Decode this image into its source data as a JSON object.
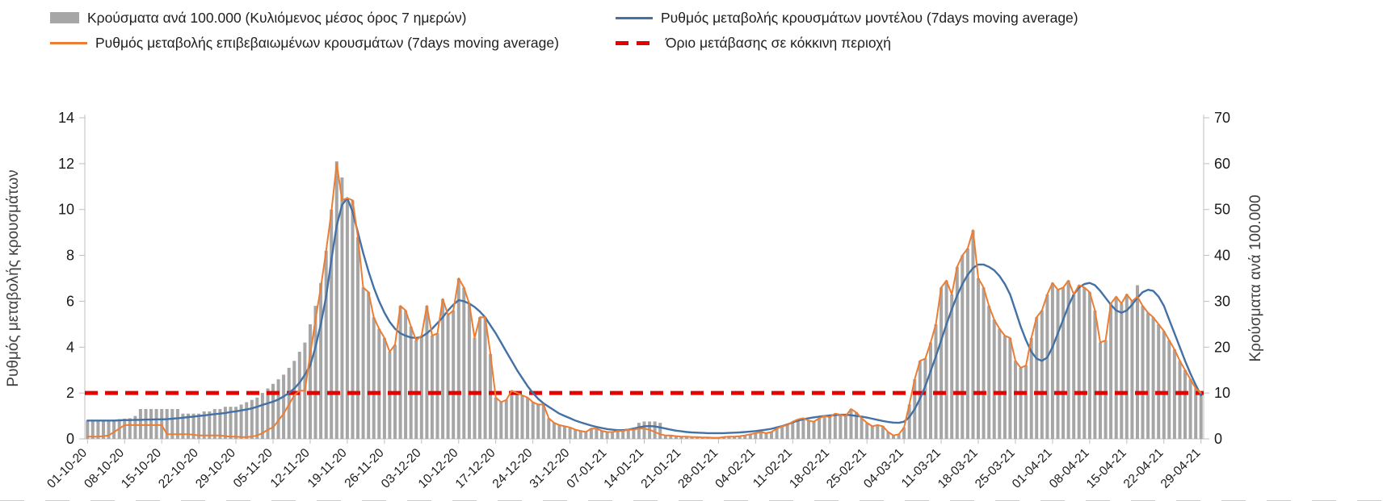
{
  "chart_data": {
    "type": "bar+line combo, dual y-axis",
    "grid": false,
    "legend_position": "top",
    "left_axis": {
      "label": "Ρυθμός μεταβολής κρουσμάτων",
      "min": 0,
      "max": 14,
      "ticks": [
        0,
        2,
        4,
        6,
        8,
        10,
        12,
        14
      ]
    },
    "right_axis": {
      "label": "Κρούσματα ανά 100.000",
      "min": 0,
      "max": 70,
      "ticks": [
        0,
        10,
        20,
        30,
        40,
        50,
        60,
        70
      ]
    },
    "x_tick_interval_days": 7,
    "series_length": 211,
    "x_tick_labels": [
      "01-10-20",
      "08-10-20",
      "15-10-20",
      "22-10-20",
      "29-10-20",
      "05-11-20",
      "12-11-20",
      "19-11-20",
      "26-11-20",
      "03-12-20",
      "10-12-20",
      "17-12-20",
      "24-12-20",
      "31-12-20",
      "07-01-21",
      "14-01-21",
      "21-01-21",
      "28-01-21",
      "04-02-21",
      "11-02-21",
      "18-02-21",
      "25-02-21",
      "04-03-21",
      "11-03-21",
      "18-03-21",
      "25-03-21",
      "01-04-21",
      "08-04-21",
      "15-04-21",
      "22-04-21",
      "29-04-21"
    ],
    "threshold": {
      "name": "Όριο μετάβασης σε κόκκινη περιοχή",
      "axis": "left",
      "value": 2,
      "color": "#e60000"
    },
    "series": [
      {
        "key": "cases-per-100k-bars",
        "name": "Κρούσματα ανά 100.000 (Κυλιόμενος μέσος όρος 7 ημερών)",
        "type": "bar",
        "axis": "right",
        "color": "#a6a6a6",
        "values": [
          4,
          4,
          4,
          4,
          4,
          4.2,
          4.3,
          4.4,
          4.5,
          5,
          6.5,
          6.5,
          6.5,
          6.5,
          6.5,
          6.5,
          6.5,
          6.5,
          5.5,
          5.5,
          5.5,
          5.5,
          6,
          6,
          6.5,
          6.5,
          7,
          7,
          7,
          7.5,
          8,
          8.5,
          9,
          10,
          11,
          12,
          13,
          14,
          15.5,
          17,
          19,
          21,
          25,
          29,
          34,
          41,
          50,
          60.5,
          57,
          52.5,
          52,
          44,
          33,
          32,
          26.5,
          24,
          22,
          19,
          20.5,
          29,
          28,
          24.5,
          21.5,
          22.5,
          29,
          22.5,
          23,
          30.5,
          27,
          28,
          35,
          33,
          29.5,
          22,
          26.5,
          26.5,
          18.5,
          9,
          8,
          8.5,
          10.5,
          10,
          9.5,
          9,
          8,
          7.5,
          7.5,
          4.5,
          3.5,
          3,
          2.8,
          2.5,
          2,
          1.8,
          1.5,
          2.3,
          2.3,
          1.8,
          1.5,
          1.5,
          1.8,
          1.8,
          2,
          2,
          3.5,
          3.8,
          3.8,
          3.8,
          3.5,
          0.8,
          0.8,
          0.6,
          0.5,
          0.5,
          0.4,
          0.4,
          0.3,
          0.3,
          0.3,
          0.3,
          0.4,
          0.5,
          0.5,
          0.6,
          0.8,
          1,
          1.3,
          1.5,
          1.3,
          1.5,
          2.3,
          2.8,
          3,
          3.8,
          4.3,
          4.5,
          4,
          3.8,
          4.5,
          5,
          4.8,
          5.5,
          5.3,
          5,
          6.5,
          5.8,
          4.5,
          3.5,
          2.8,
          3,
          2.8,
          1.5,
          0.8,
          1,
          2.5,
          7.5,
          13,
          17,
          17.5,
          21,
          25,
          33,
          34.5,
          31.5,
          37.5,
          40,
          41.5,
          45.5,
          35,
          33,
          29,
          26,
          24,
          22.5,
          22,
          17,
          15.5,
          16,
          22,
          26.5,
          28,
          31.5,
          34,
          32.5,
          33,
          34.5,
          31.5,
          33.5,
          33,
          32,
          28,
          21,
          21.5,
          29.5,
          31,
          29.5,
          31.5,
          30,
          33.5,
          29,
          27.5,
          26.5,
          25,
          23.5,
          21.5,
          19.5,
          17,
          15,
          13,
          11,
          10
        ]
      },
      {
        "key": "model-rate-line",
        "name": "Ρυθμός μεταβολής κρουσμάτων μοντέλου (7days moving average)",
        "type": "line",
        "axis": "left",
        "color": "#4371a5",
        "values": [
          0.8,
          0.8,
          0.8,
          0.8,
          0.8,
          0.8,
          0.81,
          0.82,
          0.82,
          0.83,
          0.83,
          0.84,
          0.84,
          0.85,
          0.85,
          0.86,
          0.88,
          0.9,
          0.92,
          0.95,
          0.97,
          1,
          1.02,
          1.05,
          1.08,
          1.1,
          1.13,
          1.17,
          1.2,
          1.24,
          1.28,
          1.33,
          1.4,
          1.48,
          1.55,
          1.62,
          1.72,
          1.85,
          2,
          2.2,
          2.45,
          2.8,
          3.2,
          4,
          5,
          6.2,
          7.8,
          9.3,
          10.2,
          10.5,
          9.9,
          9,
          8.1,
          7.3,
          6.6,
          6,
          5.5,
          5.1,
          4.8,
          4.6,
          4.5,
          4.42,
          4.4,
          4.45,
          4.6,
          4.8,
          5.05,
          5.3,
          5.6,
          5.85,
          6.05,
          6,
          5.9,
          5.75,
          5.55,
          5.3,
          4.95,
          4.6,
          4.2,
          3.8,
          3.4,
          3,
          2.65,
          2.3,
          2,
          1.75,
          1.55,
          1.4,
          1.25,
          1.1,
          1,
          0.9,
          0.8,
          0.72,
          0.65,
          0.58,
          0.52,
          0.47,
          0.43,
          0.4,
          0.38,
          0.38,
          0.4,
          0.45,
          0.5,
          0.55,
          0.56,
          0.54,
          0.5,
          0.45,
          0.4,
          0.36,
          0.33,
          0.3,
          0.28,
          0.27,
          0.26,
          0.25,
          0.25,
          0.25,
          0.25,
          0.26,
          0.27,
          0.28,
          0.3,
          0.32,
          0.34,
          0.37,
          0.4,
          0.44,
          0.5,
          0.56,
          0.63,
          0.72,
          0.8,
          0.86,
          0.9,
          0.94,
          0.97,
          1,
          1.02,
          1.04,
          1.05,
          1.05,
          1.03,
          1,
          0.97,
          0.93,
          0.88,
          0.83,
          0.78,
          0.74,
          0.71,
          0.7,
          0.75,
          0.95,
          1.3,
          1.75,
          2.3,
          2.95,
          3.6,
          4.3,
          5,
          5.65,
          6.25,
          6.75,
          7.15,
          7.45,
          7.6,
          7.6,
          7.5,
          7.35,
          7.1,
          6.75,
          6.3,
          5.6,
          4.9,
          4.3,
          3.8,
          3.5,
          3.4,
          3.55,
          4,
          4.6,
          5.2,
          5.8,
          6.3,
          6.6,
          6.75,
          6.8,
          6.7,
          6.45,
          6.15,
          5.85,
          5.6,
          5.5,
          5.6,
          5.85,
          6.15,
          6.4,
          6.5,
          6.45,
          6.2,
          5.8,
          5.2,
          4.6,
          4,
          3.4,
          2.85,
          2.35,
          1.9
        ]
      },
      {
        "key": "confirmed-rate-line",
        "name": "Ρυθμός μεταβολής επιβεβαιωμένων κρουσμάτων (7days moving average)",
        "type": "line",
        "axis": "left",
        "color": "#ec7d32",
        "values": [
          0.1,
          0.1,
          0.1,
          0.12,
          0.15,
          0.3,
          0.45,
          0.6,
          0.6,
          0.6,
          0.6,
          0.6,
          0.6,
          0.6,
          0.6,
          0.2,
          0.2,
          0.2,
          0.2,
          0.2,
          0.18,
          0.15,
          0.15,
          0.15,
          0.15,
          0.15,
          0.12,
          0.1,
          0.1,
          0.08,
          0.08,
          0.1,
          0.15,
          0.25,
          0.4,
          0.5,
          0.8,
          1.1,
          1.5,
          1.9,
          2.1,
          2.1,
          3.7,
          5.2,
          6.6,
          8.2,
          9.9,
          12,
          10.4,
          10.5,
          10.4,
          8.8,
          6.6,
          6.4,
          5.3,
          4.8,
          4.4,
          3.8,
          4.1,
          5.8,
          5.6,
          4.9,
          4.3,
          4.5,
          5.8,
          4.5,
          4.6,
          6.1,
          5.4,
          5.6,
          7,
          6.6,
          5.9,
          4.4,
          5.3,
          5.3,
          3.7,
          1.8,
          1.6,
          1.7,
          2.1,
          2,
          1.9,
          1.8,
          1.6,
          1.5,
          1.5,
          0.9,
          0.7,
          0.6,
          0.55,
          0.5,
          0.4,
          0.35,
          0.3,
          0.45,
          0.45,
          0.35,
          0.3,
          0.3,
          0.35,
          0.35,
          0.4,
          0.4,
          0.45,
          0.45,
          0.4,
          0.3,
          0.2,
          0.15,
          0.15,
          0.12,
          0.1,
          0.1,
          0.08,
          0.08,
          0.06,
          0.06,
          0.05,
          0.05,
          0.08,
          0.1,
          0.1,
          0.12,
          0.15,
          0.2,
          0.25,
          0.3,
          0.25,
          0.3,
          0.45,
          0.55,
          0.6,
          0.75,
          0.85,
          0.9,
          0.8,
          0.75,
          0.9,
          1,
          0.95,
          1.1,
          1.05,
          1,
          1.3,
          1.15,
          0.9,
          0.7,
          0.55,
          0.6,
          0.55,
          0.3,
          0.15,
          0.2,
          0.5,
          1.5,
          2.6,
          3.4,
          3.5,
          4.2,
          5,
          6.6,
          6.9,
          6.3,
          7.5,
          8,
          8.3,
          9.1,
          7,
          6.6,
          5.8,
          5.2,
          4.8,
          4.5,
          4.4,
          3.4,
          3.1,
          3.2,
          4.4,
          5.3,
          5.6,
          6.3,
          6.8,
          6.5,
          6.6,
          6.9,
          6.3,
          6.7,
          6.6,
          6.4,
          5.6,
          4.2,
          4.3,
          5.9,
          6.2,
          5.9,
          6.3,
          6,
          6.2,
          5.8,
          5.5,
          5.3,
          5,
          4.7,
          4.3,
          3.9,
          3.4,
          3,
          2.6,
          2.2,
          2
        ]
      }
    ]
  }
}
